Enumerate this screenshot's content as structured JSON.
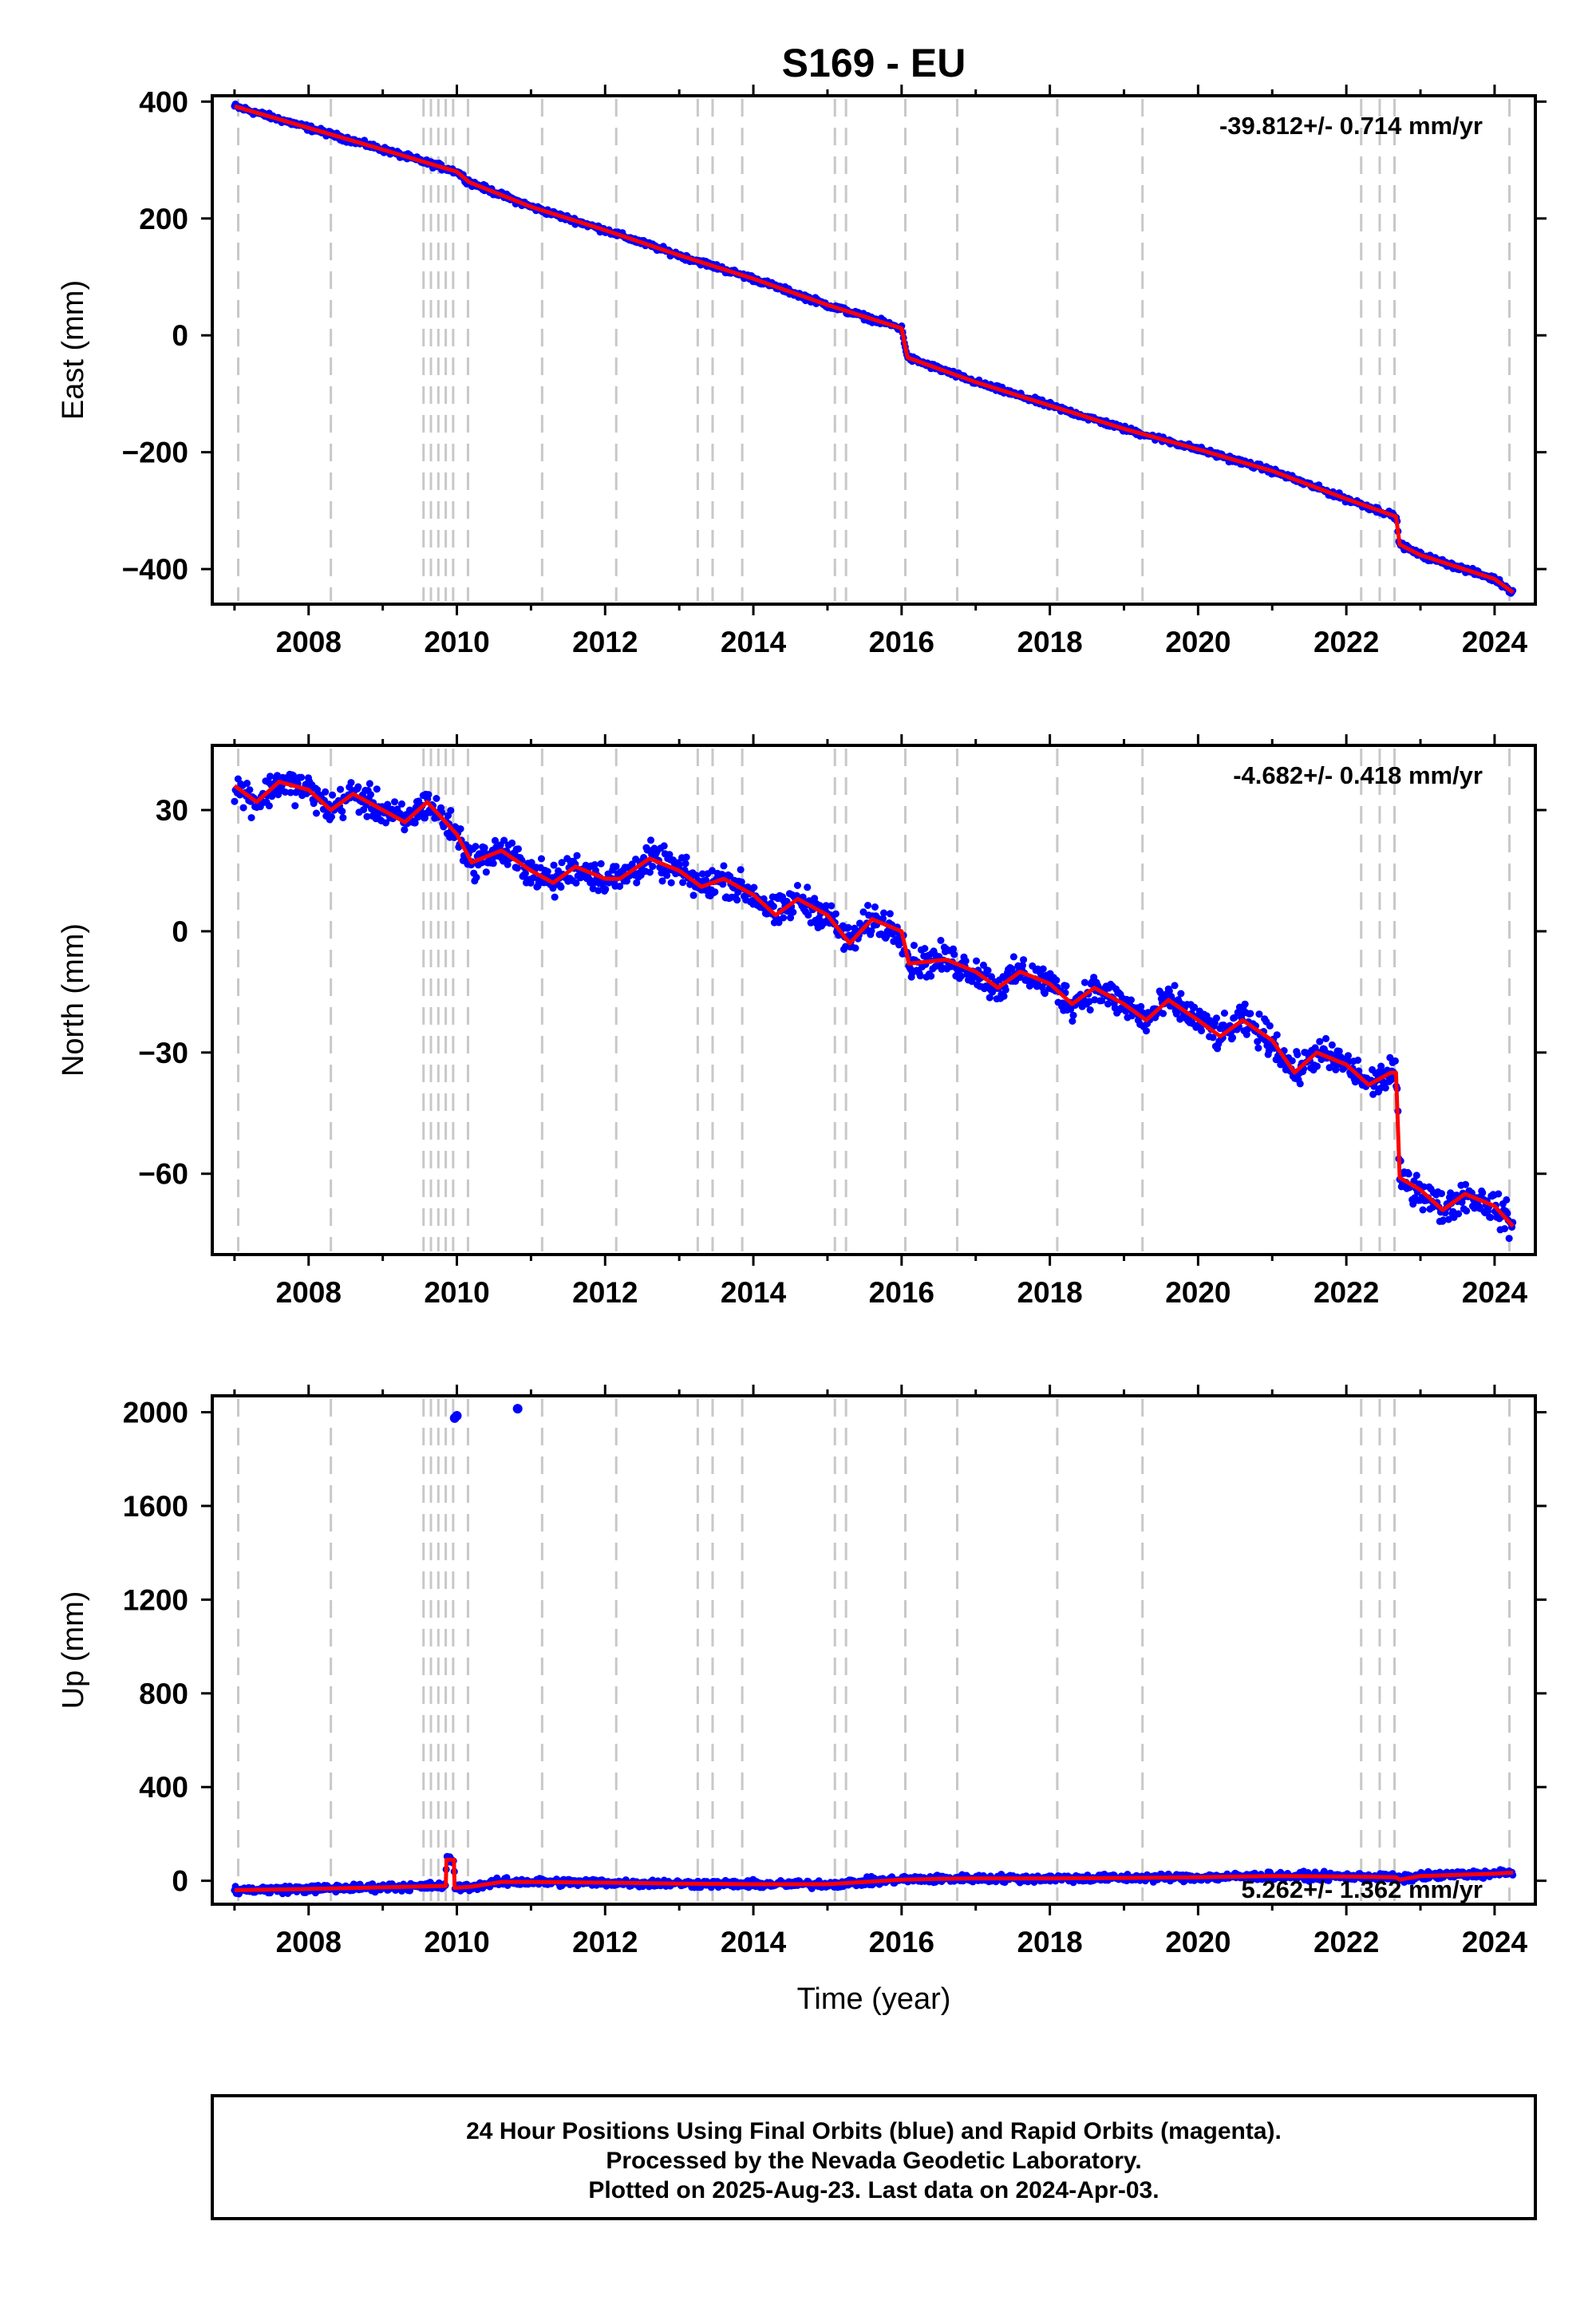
{
  "title": "S169 - EU",
  "xlabel": "Time (year)",
  "footer": [
    "24 Hour Positions Using Final Orbits (blue) and Rapid Orbits (magenta).",
    "Processed by the Nevada Geodetic Laboratory.",
    "Plotted on 2025-Aug-23. Last data on 2024-Apr-03."
  ],
  "colors": {
    "data": "#0000ff",
    "model": "#ff0000",
    "steps": "#c8c8c8",
    "frame": "#000000"
  },
  "chart_data": [
    {
      "type": "scatter",
      "panel": "east",
      "ylabel": "East (mm)",
      "rate_label": "-39.812+/- 0.714 mm/yr",
      "xlim": [
        2006.7,
        2024.55
      ],
      "ylim": [
        -460,
        410
      ],
      "xticks": [
        2008,
        2010,
        2012,
        2014,
        2016,
        2018,
        2020,
        2022,
        2024
      ],
      "yticks": [
        400,
        200,
        0,
        -200,
        -400
      ],
      "ytick_labels": [
        "400",
        "200",
        "0",
        "−200",
        "−400"
      ],
      "step_epochs": [
        2007.05,
        2008.3,
        2009.55,
        2009.65,
        2009.75,
        2009.85,
        2009.95,
        2010.15,
        2011.15,
        2012.15,
        2013.25,
        2013.45,
        2013.85,
        2015.1,
        2015.25,
        2016.05,
        2016.75,
        2018.1,
        2019.25,
        2022.2,
        2022.45,
        2022.65,
        2024.2
      ],
      "model_x": [
        2007.0,
        2008.0,
        2009.0,
        2010.0,
        2010.17,
        2011.0,
        2012.0,
        2013.0,
        2014.0,
        2015.0,
        2016.0,
        2016.08,
        2017.0,
        2018.0,
        2019.0,
        2020.0,
        2021.0,
        2022.0,
        2022.67,
        2022.72,
        2023.0,
        2024.0,
        2024.25
      ],
      "model_y": [
        392,
        355,
        318,
        280,
        262,
        220,
        180,
        137,
        97,
        52,
        12,
        -38,
        -80,
        -120,
        -160,
        -195,
        -232,
        -280,
        -310,
        -358,
        -376,
        -417,
        -440
      ],
      "outliers": []
    },
    {
      "type": "scatter",
      "panel": "north",
      "ylabel": "North (mm)",
      "rate_label": "-4.682+/- 0.418 mm/yr",
      "xlim": [
        2006.7,
        2024.55
      ],
      "ylim": [
        -80,
        46
      ],
      "xticks": [
        2008,
        2010,
        2012,
        2014,
        2016,
        2018,
        2020,
        2022,
        2024
      ],
      "yticks": [
        30,
        0,
        -30,
        -60
      ],
      "ytick_labels": [
        "30",
        "0",
        "−30",
        "−60"
      ],
      "step_epochs": [
        2007.05,
        2008.3,
        2009.55,
        2009.65,
        2009.75,
        2009.85,
        2009.95,
        2010.15,
        2011.15,
        2012.15,
        2013.25,
        2013.45,
        2013.85,
        2015.1,
        2015.25,
        2016.05,
        2016.75,
        2018.1,
        2019.25,
        2022.2,
        2022.45,
        2022.65,
        2024.2
      ],
      "model_x": [
        2007.0,
        2007.3,
        2007.6,
        2008.0,
        2008.3,
        2008.6,
        2009.0,
        2009.3,
        2009.6,
        2010.0,
        2010.2,
        2010.6,
        2011.0,
        2011.3,
        2011.6,
        2012.0,
        2012.2,
        2012.6,
        2013.0,
        2013.3,
        2013.6,
        2014.0,
        2014.3,
        2014.6,
        2015.0,
        2015.3,
        2015.6,
        2016.0,
        2016.1,
        2016.6,
        2017.0,
        2017.3,
        2017.6,
        2018.0,
        2018.3,
        2018.6,
        2019.0,
        2019.3,
        2019.6,
        2020.0,
        2020.3,
        2020.6,
        2021.0,
        2021.3,
        2021.6,
        2022.0,
        2022.3,
        2022.6,
        2022.67,
        2022.72,
        2023.0,
        2023.3,
        2023.6,
        2024.0,
        2024.25
      ],
      "model_y": [
        36,
        32,
        37,
        35,
        30,
        34,
        30,
        27,
        32,
        24,
        17,
        20,
        15,
        12,
        16,
        13,
        13,
        18,
        15,
        11,
        13,
        9,
        4,
        8,
        4,
        -3,
        3,
        0,
        -8,
        -7,
        -10,
        -14,
        -10,
        -13,
        -18,
        -14,
        -18,
        -22,
        -17,
        -22,
        -26,
        -22,
        -27,
        -35,
        -30,
        -33,
        -38,
        -35,
        -35,
        -61,
        -64,
        -69,
        -65,
        -68,
        -73
      ],
      "outliers": []
    },
    {
      "type": "scatter",
      "panel": "up",
      "ylabel": "Up (mm)",
      "rate_label": "5.262+/- 1.362 mm/yr",
      "xlim": [
        2006.7,
        2024.55
      ],
      "ylim": [
        -100,
        2070
      ],
      "xticks": [
        2008,
        2010,
        2012,
        2014,
        2016,
        2018,
        2020,
        2022,
        2024
      ],
      "yticks": [
        2000,
        1600,
        1200,
        800,
        400,
        0
      ],
      "ytick_labels": [
        "2000",
        "1600",
        "1200",
        "800",
        "400",
        "0"
      ],
      "step_epochs": [
        2007.05,
        2008.3,
        2009.55,
        2009.65,
        2009.75,
        2009.85,
        2009.95,
        2010.15,
        2011.15,
        2012.15,
        2013.25,
        2013.45,
        2013.85,
        2015.1,
        2015.25,
        2016.05,
        2016.75,
        2018.1,
        2019.25,
        2022.2,
        2022.45,
        2022.65,
        2024.2
      ],
      "model_x": [
        2007.0,
        2008.0,
        2009.0,
        2009.8,
        2009.85,
        2009.86,
        2009.96,
        2009.97,
        2010.2,
        2010.6,
        2011.0,
        2012.0,
        2013.0,
        2014.0,
        2015.0,
        2016.0,
        2016.5,
        2017.0,
        2018.0,
        2019.0,
        2020.0,
        2021.0,
        2022.0,
        2022.67,
        2022.72,
        2023.0,
        2024.0,
        2024.25
      ],
      "model_y": [
        -40,
        -35,
        -28,
        -22,
        -22,
        90,
        90,
        -30,
        -25,
        -5,
        -5,
        -8,
        -12,
        -15,
        -15,
        5,
        8,
        10,
        10,
        12,
        15,
        20,
        18,
        15,
        5,
        20,
        30,
        35
      ],
      "outliers": [
        [
          2009.97,
          1975
        ],
        [
          2010.0,
          1985
        ],
        [
          2010.82,
          2015
        ]
      ]
    }
  ]
}
